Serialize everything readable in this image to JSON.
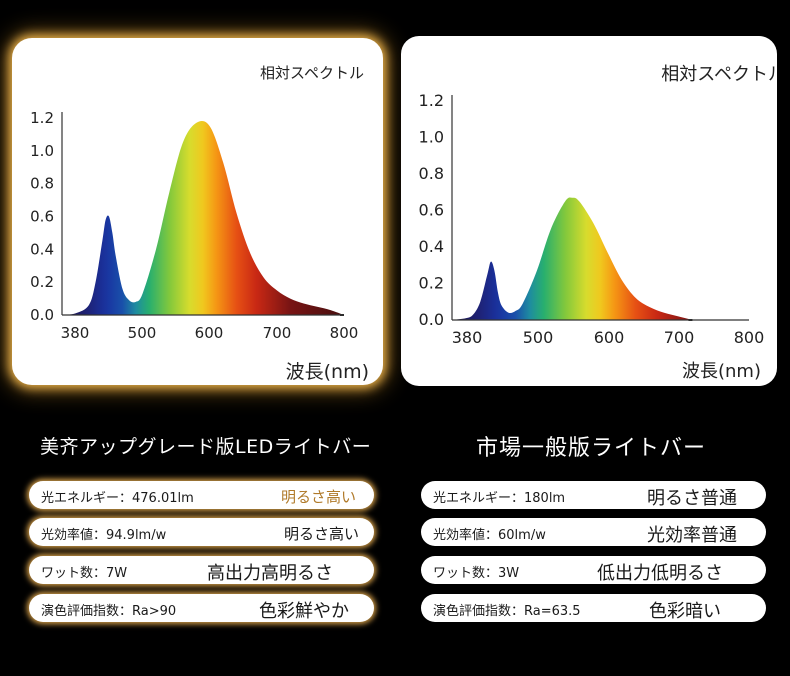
{
  "colors": {
    "background": "#000000",
    "panel": "#ffffff",
    "glow": "#e8b04a",
    "gold_text": "#b07a2a"
  },
  "chart_data": [
    {
      "type": "area",
      "title": "相対スペクトル",
      "xlabel": "波長(nm)",
      "ylabel": "",
      "x_ticks": [
        "380",
        "500",
        "600",
        "700",
        "800"
      ],
      "y_ticks": [
        "0.0",
        "0.2",
        "0.4",
        "0.6",
        "0.8",
        "1.0",
        "1.2"
      ],
      "xlim": [
        380,
        800
      ],
      "ylim": [
        0,
        1.2
      ],
      "grid": false,
      "x": [
        380,
        400,
        420,
        430,
        440,
        445,
        450,
        455,
        460,
        470,
        480,
        490,
        500,
        520,
        540,
        560,
        580,
        600,
        620,
        640,
        660,
        680,
        700,
        720,
        740,
        760,
        780,
        800
      ],
      "y": [
        0.0,
        0.01,
        0.06,
        0.2,
        0.45,
        0.58,
        0.6,
        0.5,
        0.36,
        0.16,
        0.09,
        0.08,
        0.13,
        0.4,
        0.75,
        1.05,
        1.17,
        1.15,
        0.93,
        0.62,
        0.38,
        0.23,
        0.15,
        0.1,
        0.07,
        0.05,
        0.03,
        0.0
      ]
    },
    {
      "type": "area",
      "title": "相対スペクトル",
      "xlabel": "波長(nm)",
      "ylabel": "",
      "x_ticks": [
        "380",
        "500",
        "600",
        "700",
        "800"
      ],
      "y_ticks": [
        "0.0",
        "0.2",
        "0.4",
        "0.6",
        "0.8",
        "1.0",
        "1.2"
      ],
      "xlim": [
        380,
        800
      ],
      "ylim": [
        0,
        1.2
      ],
      "grid": false,
      "x": [
        380,
        400,
        410,
        420,
        430,
        435,
        440,
        445,
        450,
        460,
        470,
        480,
        500,
        520,
        540,
        550,
        560,
        580,
        600,
        620,
        640,
        660,
        680,
        700,
        720
      ],
      "y": [
        0.0,
        0.01,
        0.03,
        0.1,
        0.25,
        0.32,
        0.27,
        0.15,
        0.08,
        0.04,
        0.05,
        0.09,
        0.27,
        0.5,
        0.65,
        0.67,
        0.65,
        0.53,
        0.37,
        0.22,
        0.12,
        0.07,
        0.04,
        0.02,
        0.0
      ]
    }
  ],
  "left": {
    "heading": "美齐アップグレード版LEDライトバー",
    "rows": [
      {
        "label": "光エネルギー：476.01lm",
        "value": "明るさ高い"
      },
      {
        "label": "光効率値：94.9lm/w",
        "value": "明るさ高い"
      },
      {
        "label": "ワット数：7W",
        "value": "高出力高明るさ"
      },
      {
        "label": "演色評価指数：Ra>90",
        "value": "色彩鮮やか"
      }
    ]
  },
  "right": {
    "heading": "市場一般版ライトバー",
    "rows": [
      {
        "label": "光エネルギー：180lm",
        "value": "明るさ普通"
      },
      {
        "label": "光効率値：60lm/w",
        "value": "光効率普通"
      },
      {
        "label": "ワット数：3W",
        "value": "低出力低明るさ"
      },
      {
        "label": "演色評価指数：Ra=63.5",
        "value": "色彩暗い"
      }
    ]
  }
}
